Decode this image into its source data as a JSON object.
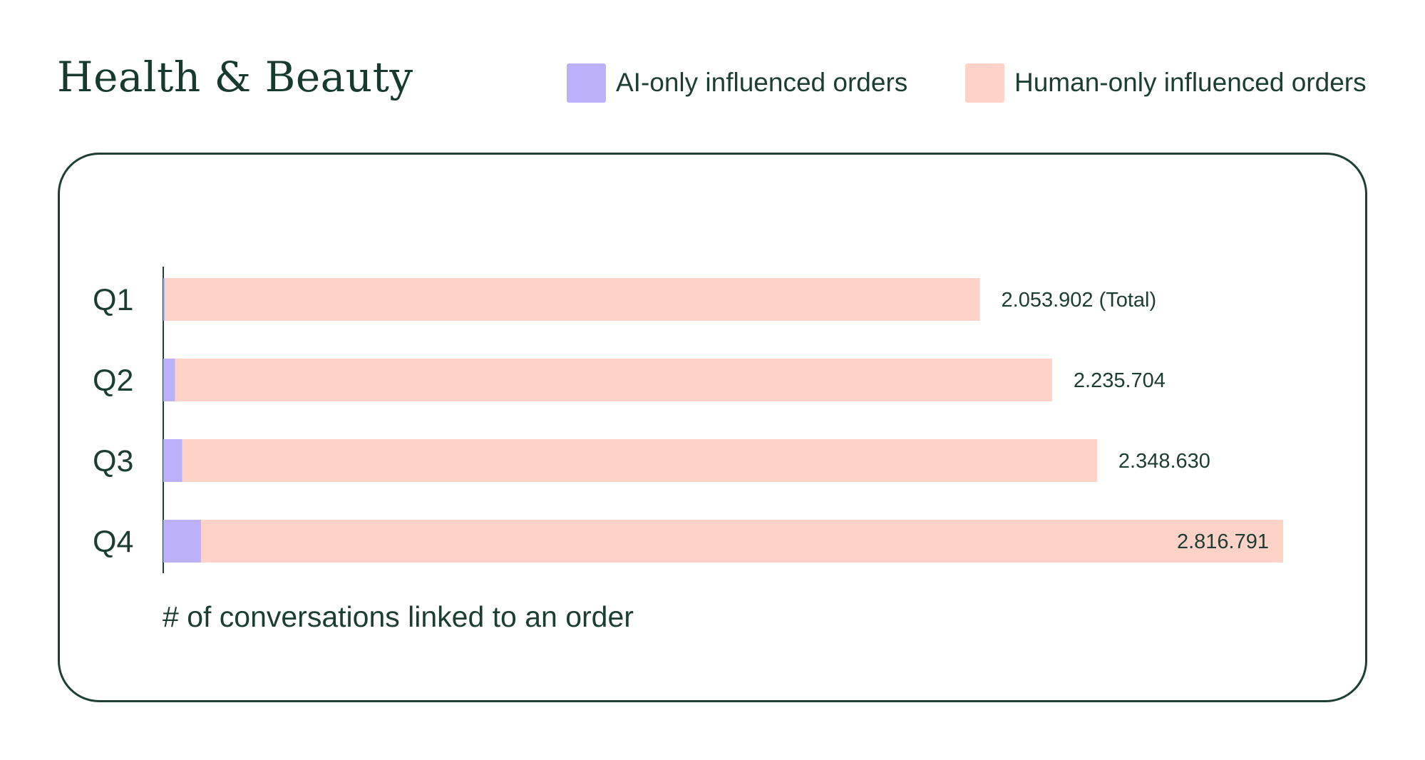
{
  "title": "Health & Beauty",
  "legend": [
    {
      "label": "AI-only influenced orders",
      "color": "#bcb0fb"
    },
    {
      "label": "Human-only influenced orders",
      "color": "#fed2c6"
    }
  ],
  "chart_data": {
    "type": "bar",
    "orientation": "horizontal",
    "stacked": true,
    "title": "Health & Beauty",
    "xlabel": "# of conversations linked to an order",
    "categories": [
      "Q1",
      "Q2",
      "Q3",
      "Q4"
    ],
    "series": [
      {
        "name": "AI-only influenced orders",
        "color": "#bcb0fb",
        "values": [
          4000,
          30000,
          48000,
          95000
        ]
      },
      {
        "name": "Human-only influenced orders",
        "color": "#fed2c6",
        "values": [
          2049902,
          2205704,
          2300630,
          2721791
        ]
      }
    ],
    "totals": [
      2053902,
      2235704,
      2348630,
      2816791
    ],
    "total_labels": [
      "2.053.902 (Total)",
      "2.235.704",
      "2.348.630",
      "2.816.791"
    ],
    "xlim": [
      0,
      2816791
    ],
    "grid": false,
    "legend_position": "top-right"
  }
}
